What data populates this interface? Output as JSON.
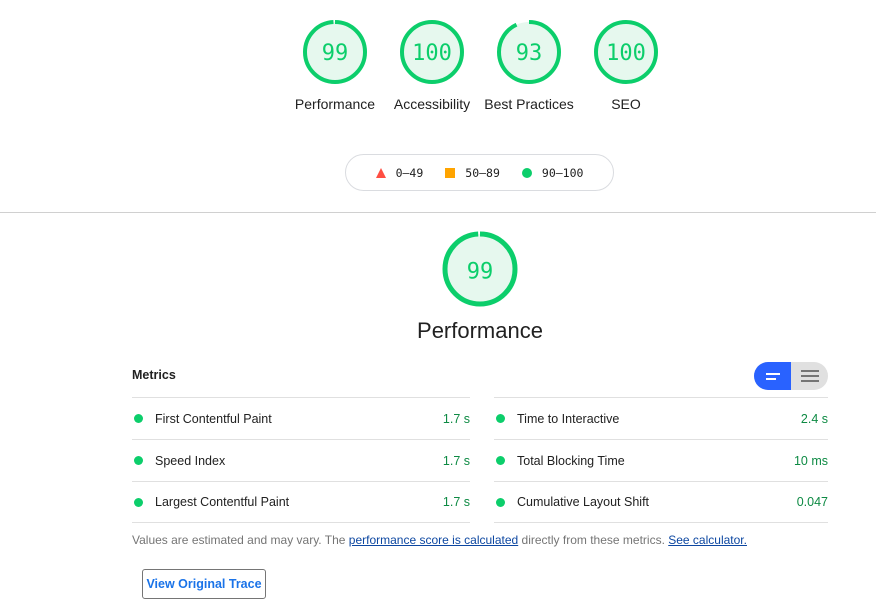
{
  "colors": {
    "pass": "#0cce6b",
    "average": "#ffa400",
    "fail": "#ff4e42",
    "pass_text": "#0d8a43",
    "accent": "#2962ff"
  },
  "gauges": [
    {
      "score": 99,
      "label": "Performance"
    },
    {
      "score": 100,
      "label": "Accessibility"
    },
    {
      "score": 93,
      "label": "Best Practices"
    },
    {
      "score": 100,
      "label": "SEO"
    }
  ],
  "legend": [
    {
      "icon": "triangle-icon",
      "range": "0–49"
    },
    {
      "icon": "square-icon",
      "range": "50–89"
    },
    {
      "icon": "circle-icon",
      "range": "90–100"
    }
  ],
  "main": {
    "score": 99,
    "title": "Performance"
  },
  "metrics": {
    "title": "Metrics",
    "toggle": {
      "active": "summary-view",
      "options": [
        "summary-view",
        "detailed-view"
      ]
    },
    "left": [
      {
        "name": "First Contentful Paint",
        "value": "1.7 s"
      },
      {
        "name": "Speed Index",
        "value": "1.7 s"
      },
      {
        "name": "Largest Contentful Paint",
        "value": "1.7 s"
      }
    ],
    "right": [
      {
        "name": "Time to Interactive",
        "value": "2.4 s"
      },
      {
        "name": "Total Blocking Time",
        "value": "10 ms"
      },
      {
        "name": "Cumulative Layout Shift",
        "value": "0.047"
      }
    ]
  },
  "note": {
    "prefix": "Values are estimated and may vary. The ",
    "link1": "performance score is calculated",
    "middle": " directly from these metrics. ",
    "link2": "See calculator."
  },
  "trace_button": "View Original Trace"
}
